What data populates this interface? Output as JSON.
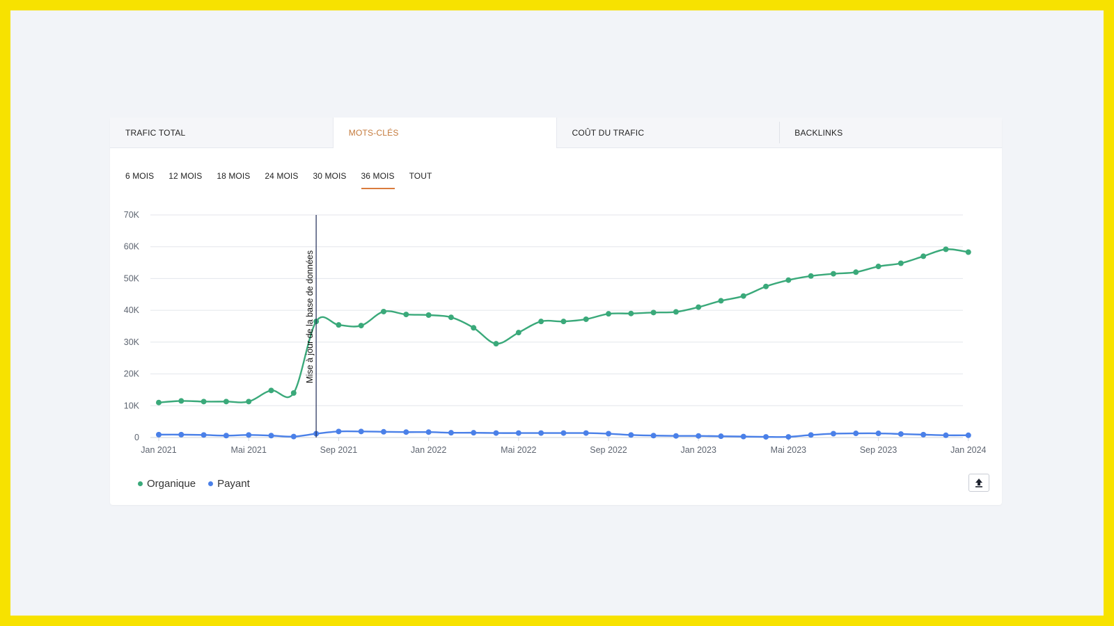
{
  "tabs": [
    {
      "label": "TRAFIC TOTAL",
      "active": false
    },
    {
      "label": "MOTS-CLÉS",
      "active": true
    },
    {
      "label": "COÛT DU TRAFIC",
      "active": false
    },
    {
      "label": "BACKLINKS",
      "active": false
    }
  ],
  "periods": [
    {
      "label": "6 MOIS",
      "active": false
    },
    {
      "label": "12 MOIS",
      "active": false
    },
    {
      "label": "18 MOIS",
      "active": false
    },
    {
      "label": "24 MOIS",
      "active": false
    },
    {
      "label": "30 MOIS",
      "active": false
    },
    {
      "label": "36 MOIS",
      "active": true
    },
    {
      "label": "TOUT",
      "active": false
    }
  ],
  "legend": [
    {
      "name": "Organique",
      "color": "#3aa97a"
    },
    {
      "name": "Payant",
      "color": "#4a80e8"
    }
  ],
  "export_icon": "upload-icon",
  "chart_data": {
    "type": "line",
    "x_tick_labels": [
      "Jan 2021",
      "Mai 2021",
      "Sep 2021",
      "Jan 2022",
      "Mai 2022",
      "Sep 2022",
      "Jan 2023",
      "Mai 2023",
      "Sep 2023",
      "Jan 2024"
    ],
    "y_tick_labels": [
      "0",
      "10K",
      "20K",
      "30K",
      "40K",
      "50K",
      "60K",
      "70K"
    ],
    "ylim": [
      0,
      70000
    ],
    "grid": true,
    "legend_position": "bottom-left",
    "annotation": {
      "label": "Mise à jour de la base de données",
      "x": "2021-08"
    },
    "x": [
      "2021-01",
      "2021-02",
      "2021-03",
      "2021-04",
      "2021-05",
      "2021-06",
      "2021-07",
      "2021-08",
      "2021-09",
      "2021-10",
      "2021-11",
      "2021-12",
      "2022-01",
      "2022-02",
      "2022-03",
      "2022-04",
      "2022-05",
      "2022-06",
      "2022-07",
      "2022-08",
      "2022-09",
      "2022-10",
      "2022-11",
      "2022-12",
      "2023-01",
      "2023-02",
      "2023-03",
      "2023-04",
      "2023-05",
      "2023-06",
      "2023-07",
      "2023-08",
      "2023-09",
      "2023-10",
      "2023-11",
      "2023-12",
      "2024-01"
    ],
    "series": [
      {
        "name": "Organique",
        "color": "#3aa97a",
        "values": [
          11000,
          11500,
          11300,
          11300,
          11300,
          14800,
          14000,
          36500,
          35400,
          35200,
          39600,
          38700,
          38500,
          37800,
          34500,
          29500,
          33000,
          36500,
          36500,
          37200,
          38900,
          39000,
          39300,
          39500,
          41000,
          43000,
          44500,
          47500,
          49500,
          50800,
          51500,
          52000,
          53800,
          54800,
          57000,
          59200,
          58300
        ]
      },
      {
        "name": "Payant",
        "color": "#4a80e8",
        "values": [
          900,
          900,
          800,
          600,
          800,
          600,
          300,
          1200,
          1900,
          1900,
          1800,
          1700,
          1700,
          1500,
          1500,
          1400,
          1400,
          1400,
          1400,
          1400,
          1200,
          800,
          600,
          500,
          500,
          400,
          300,
          200,
          200,
          800,
          1200,
          1300,
          1300,
          1100,
          900,
          700,
          700
        ]
      }
    ]
  }
}
